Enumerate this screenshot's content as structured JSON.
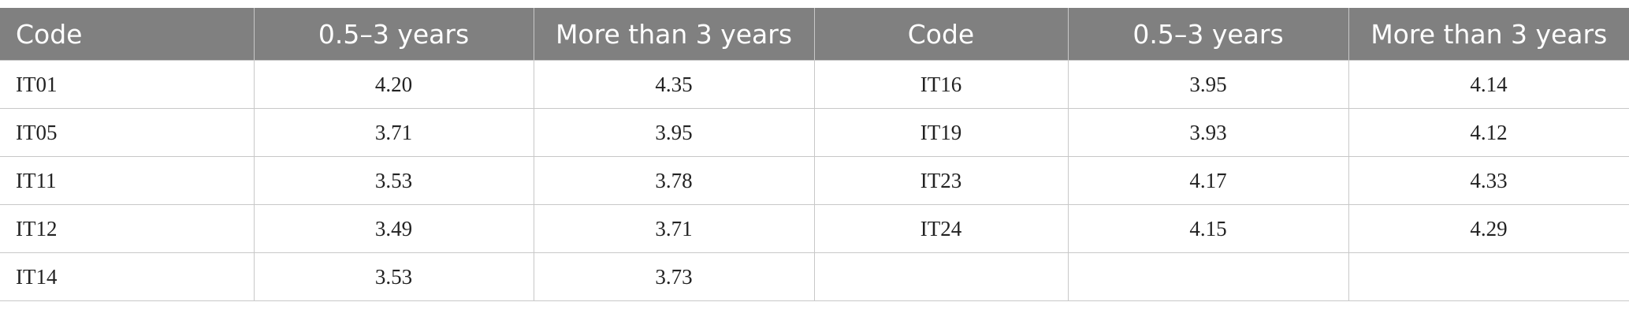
{
  "table": {
    "header": [
      "Code",
      "0.5–3 years",
      "More than 3 years",
      "Code",
      "0.5–3 years",
      "More than 3 years"
    ],
    "rows": [
      [
        "IT01",
        "4.20",
        "4.35",
        "IT16",
        "3.95",
        "4.14"
      ],
      [
        "IT05",
        "3.71",
        "3.95",
        "IT19",
        "3.93",
        "4.12"
      ],
      [
        "IT11",
        "3.53",
        "3.78",
        "IT23",
        "4.17",
        "4.33"
      ],
      [
        "IT12",
        "3.49",
        "3.71",
        "IT24",
        "4.15",
        "4.29"
      ],
      [
        "IT14",
        "3.53",
        "3.73"
      ]
    ]
  }
}
